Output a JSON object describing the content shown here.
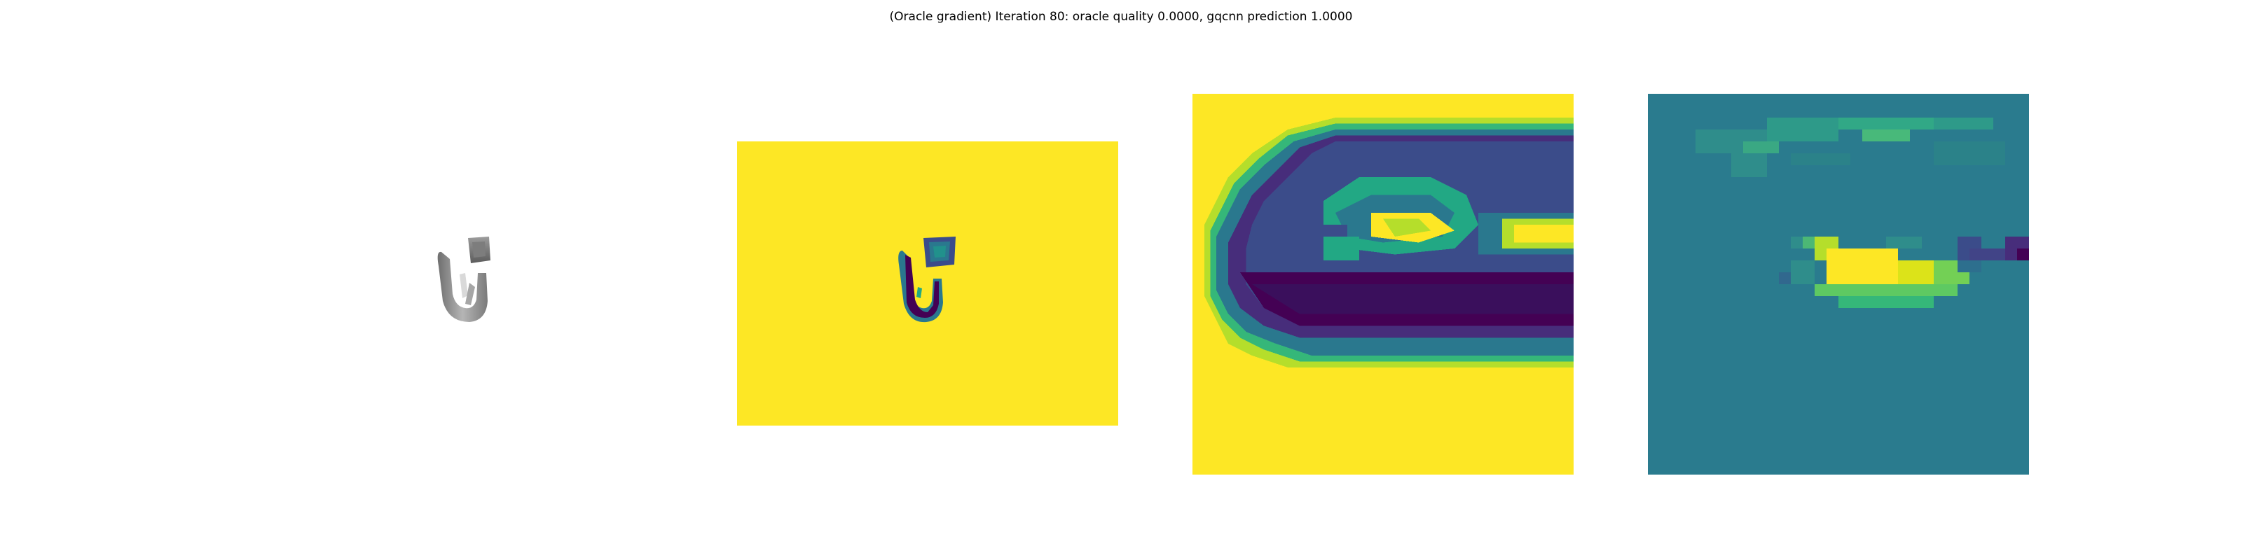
{
  "figure": {
    "title": "(Oracle gradient) Iteration 80: oracle quality 0.0000, gqcnn prediction 1.0000"
  },
  "panels": [
    {
      "name": "rendered-object",
      "description_icon": "grey-object-render"
    },
    {
      "name": "depth-image",
      "colormap": "viridis"
    },
    {
      "name": "depth-crop",
      "colormap": "viridis"
    },
    {
      "name": "gradient-map",
      "colormap": "viridis"
    }
  ],
  "colors": {
    "viridis_yellow": "#fde725",
    "viridis_dark": "#440154",
    "viridis_navy": "#3b4c8a",
    "viridis_teal": "#2a788e",
    "viridis_green": "#22a884",
    "viridis_lime": "#7ad151",
    "object_grey": "#8c8c8c"
  }
}
